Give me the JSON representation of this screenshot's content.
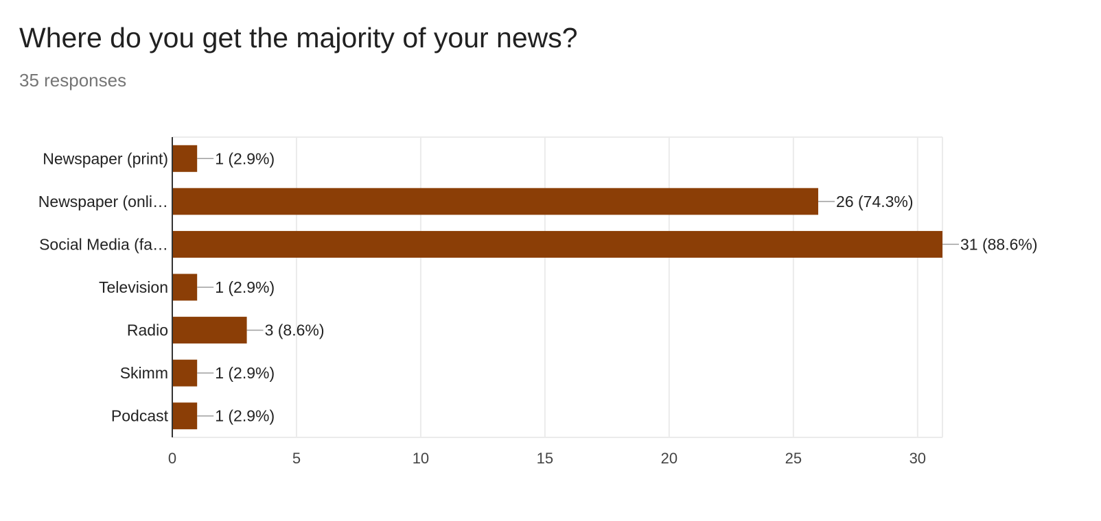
{
  "header": {
    "title": "Where do you get the majority of your news?",
    "responses": "35 responses"
  },
  "chart_data": {
    "type": "bar",
    "orientation": "horizontal",
    "categories": [
      "Newspaper (print)",
      "Newspaper (onli…",
      "Social Media (fa…",
      "Television",
      "Radio",
      "Skimm",
      "Podcast"
    ],
    "values": [
      1,
      26,
      31,
      1,
      3,
      1,
      1
    ],
    "data_labels": [
      "1 (2.9%)",
      "26 (74.3%)",
      "31 (88.6%)",
      "1 (2.9%)",
      "3 (8.6%)",
      "1 (2.9%)",
      "1 (2.9%)"
    ],
    "xlim": [
      0,
      31
    ],
    "xticks": [
      0,
      5,
      10,
      15,
      20,
      25,
      30
    ],
    "grid": true,
    "legend": "none",
    "bar_color": "#8B3E06",
    "grid_color": "#EBEBEB",
    "axis_color": "#333333",
    "leader_color": "#9E9E9E"
  }
}
